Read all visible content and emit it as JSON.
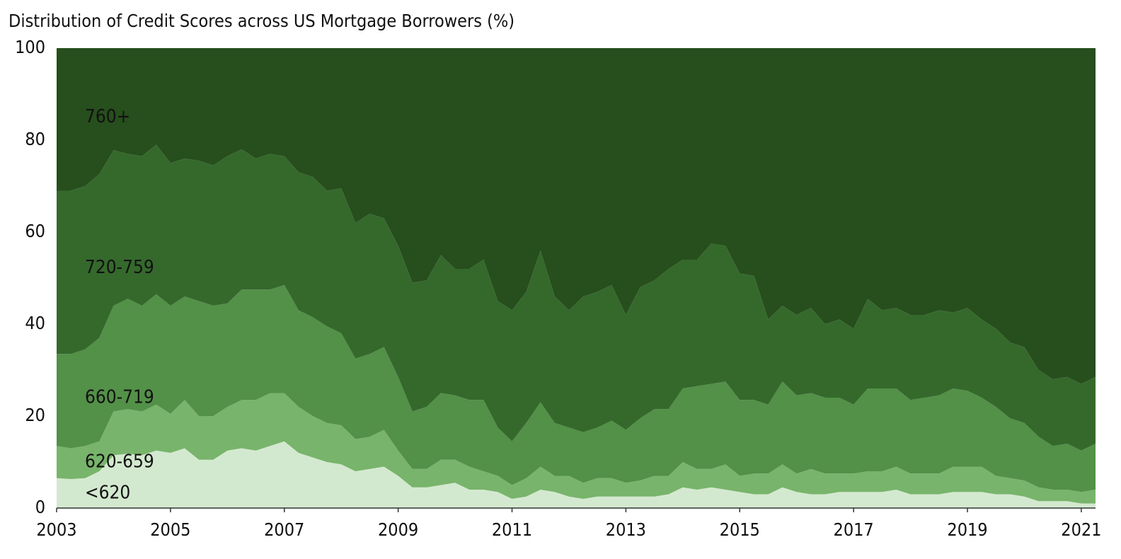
{
  "chart_data": {
    "type": "stacked-area",
    "title": "Distribution of Credit Scores across US Mortgage Borrowers (%)",
    "x": [
      2003,
      2003.25,
      2003.5,
      2003.75,
      2004,
      2004.25,
      2004.5,
      2004.75,
      2005,
      2005.25,
      2005.5,
      2005.75,
      2006,
      2006.25,
      2006.5,
      2006.75,
      2007,
      2007.25,
      2007.5,
      2007.75,
      2008,
      2008.25,
      2008.5,
      2008.75,
      2009,
      2009.25,
      2009.5,
      2009.75,
      2010,
      2010.25,
      2010.5,
      2010.75,
      2011,
      2011.25,
      2011.5,
      2011.75,
      2012,
      2012.25,
      2012.5,
      2012.75,
      2013,
      2013.25,
      2013.5,
      2013.75,
      2014,
      2014.25,
      2014.5,
      2014.75,
      2015,
      2015.25,
      2015.5,
      2015.75,
      2016,
      2016.25,
      2016.5,
      2016.75,
      2017,
      2017.25,
      2017.5,
      2017.75,
      2018,
      2018.25,
      2018.5,
      2018.75,
      2019,
      2019.25,
      2019.5,
      2019.75,
      2020,
      2020.25,
      2020.5,
      2020.75,
      2021,
      2021.25
    ],
    "series": [
      {
        "name": "<620",
        "color": "#d3e9cf",
        "label_color": "#5a9a4e",
        "values": [
          6.5,
          6.3,
          6.5,
          8,
          11.5,
          11.8,
          11.5,
          12.5,
          12,
          13,
          10.5,
          10.5,
          12.5,
          13,
          12.5,
          13.5,
          14.5,
          12,
          11,
          10,
          9.5,
          8,
          8.5,
          9,
          7,
          4.5,
          4.5,
          5,
          5.5,
          4,
          4,
          3.5,
          2,
          2.5,
          4,
          3.5,
          2.5,
          2,
          2.5,
          2.5,
          2.5,
          2.5,
          2.5,
          3,
          4.5,
          4,
          4.5,
          4,
          3.5,
          3,
          3,
          4.5,
          3.5,
          3,
          3,
          3.5,
          3.5,
          3.5,
          3.5,
          4,
          3,
          3,
          3,
          3.5,
          3.5,
          3.5,
          3,
          3,
          2.5,
          1.5,
          1.5,
          1.5,
          1,
          1
        ]
      },
      {
        "name": "620-659",
        "color": "#78b46b",
        "label_color": "#ffffff",
        "values": [
          7,
          6.7,
          7,
          6.5,
          9.5,
          9.7,
          9.5,
          10,
          8.5,
          10.5,
          9.5,
          9.5,
          9.5,
          10.5,
          11,
          11.5,
          10.5,
          10,
          9,
          8.5,
          8.5,
          7,
          7,
          8,
          5.5,
          4,
          4,
          5.5,
          5,
          5,
          4,
          3.5,
          3,
          4,
          5,
          3.5,
          4.5,
          3.5,
          4,
          4,
          3,
          3.5,
          4.5,
          4,
          5.5,
          4.5,
          4,
          5.5,
          3.5,
          4.5,
          4.5,
          5,
          4,
          5.5,
          4.5,
          4,
          4,
          4.5,
          4.5,
          5,
          4.5,
          4.5,
          4.5,
          5.5,
          5.5,
          5.5,
          4,
          3.5,
          3.5,
          3,
          2.5,
          2.5,
          2.5,
          3
        ]
      },
      {
        "name": "660-719",
        "color": "#539048",
        "label_color": "#ffffff",
        "values": [
          20,
          20.5,
          21,
          22.5,
          23,
          24,
          23,
          24,
          23.5,
          22.5,
          25,
          24,
          22.5,
          24,
          24,
          22.5,
          23.5,
          21,
          21.5,
          21,
          20,
          17.5,
          18,
          18,
          16,
          12.5,
          13.5,
          14.5,
          14,
          14.5,
          15.5,
          10.5,
          9.5,
          12,
          14,
          11.5,
          10.5,
          11,
          11,
          12.5,
          11.5,
          13.5,
          14.5,
          14.5,
          16,
          18,
          18.5,
          18,
          16.5,
          16,
          15,
          18,
          17,
          16.5,
          16.5,
          16.5,
          15,
          18,
          18,
          17,
          16,
          16.5,
          17,
          17,
          16.5,
          15,
          15,
          13,
          12.5,
          11,
          9.5,
          10,
          9,
          10
        ]
      },
      {
        "name": "720-759",
        "color": "#35692c",
        "label_color": "#ffffff",
        "values": [
          35.5,
          35.5,
          35.5,
          35.6,
          33.8,
          31.5,
          32.5,
          32.5,
          31,
          30,
          30.5,
          30.5,
          32,
          30.5,
          28.5,
          29.5,
          28,
          30,
          30.5,
          29.5,
          31.5,
          29.5,
          30.5,
          28,
          28.5,
          28,
          27.5,
          30,
          27.5,
          28.5,
          30.5,
          27.5,
          28.5,
          28.5,
          33,
          27.5,
          25.5,
          29.5,
          29.5,
          29.5,
          25,
          28.5,
          28,
          30.5,
          28,
          27.5,
          30.5,
          29.5,
          27.5,
          27,
          18.5,
          16.5,
          17.5,
          18.5,
          16,
          17,
          16.5,
          19.5,
          17,
          17.5,
          18.5,
          18,
          18.5,
          16.5,
          18,
          17,
          17,
          16.5,
          16.5,
          14.5,
          14.5,
          14.5,
          14.5,
          14.5
        ]
      },
      {
        "name": "760+",
        "color": "#274e1d",
        "label_color": "#ffffff",
        "values": [
          31,
          31,
          30,
          27.4,
          22.2,
          23,
          23.5,
          21,
          25,
          24,
          24.5,
          25.5,
          23.5,
          22,
          24,
          23,
          23.5,
          27,
          28,
          31,
          30.5,
          38,
          36,
          37,
          43,
          51,
          50.5,
          45,
          48,
          48,
          46,
          55,
          57,
          53,
          44,
          54,
          57,
          54,
          53,
          51.5,
          58,
          52,
          50.5,
          48,
          46,
          46,
          42.5,
          43,
          49,
          49.5,
          59,
          56,
          58,
          56.5,
          60,
          59,
          61,
          54.5,
          57,
          56.5,
          58,
          58,
          57,
          57.5,
          56.5,
          59,
          61,
          64,
          65,
          70,
          72,
          71.5,
          73,
          71.5
        ]
      }
    ],
    "xlim": [
      2003,
      2021.25
    ],
    "xticks": [
      2003,
      2005,
      2007,
      2009,
      2011,
      2013,
      2015,
      2017,
      2019,
      2021
    ],
    "ylim": [
      0,
      100
    ],
    "yticks": [
      0,
      20,
      40,
      60,
      80,
      100
    ]
  }
}
